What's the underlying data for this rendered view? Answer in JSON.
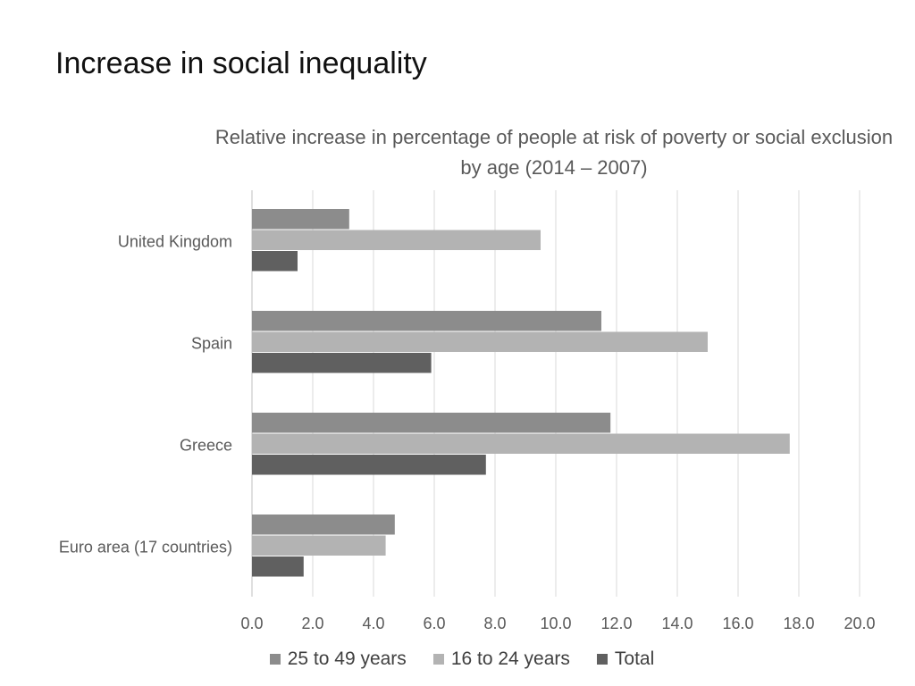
{
  "page": {
    "title": "Increase in social inequality"
  },
  "chart_data": {
    "type": "bar",
    "orientation": "horizontal",
    "title": "Relative increase in percentage of people at risk of poverty or social exclusion by age  (2014 – 2007)",
    "categories": [
      "United Kingdom",
      "Spain",
      "Greece",
      "Euro area (17 countries)"
    ],
    "series": [
      {
        "name": "25 to 49 years",
        "color": "#8c8c8c",
        "values": [
          3.2,
          11.5,
          11.8,
          4.7
        ]
      },
      {
        "name": "16 to 24 years",
        "color": "#b3b3b3",
        "values": [
          9.5,
          15.0,
          17.7,
          4.4
        ]
      },
      {
        "name": "Total",
        "color": "#606060",
        "values": [
          1.5,
          5.9,
          7.7,
          1.7
        ]
      }
    ],
    "xlim": [
      0,
      20
    ],
    "xticks": [
      "0.0",
      "2.0",
      "4.0",
      "6.0",
      "8.0",
      "10.0",
      "12.0",
      "14.0",
      "16.0",
      "18.0",
      "20.0"
    ],
    "grid": true,
    "legend_position": "bottom"
  }
}
